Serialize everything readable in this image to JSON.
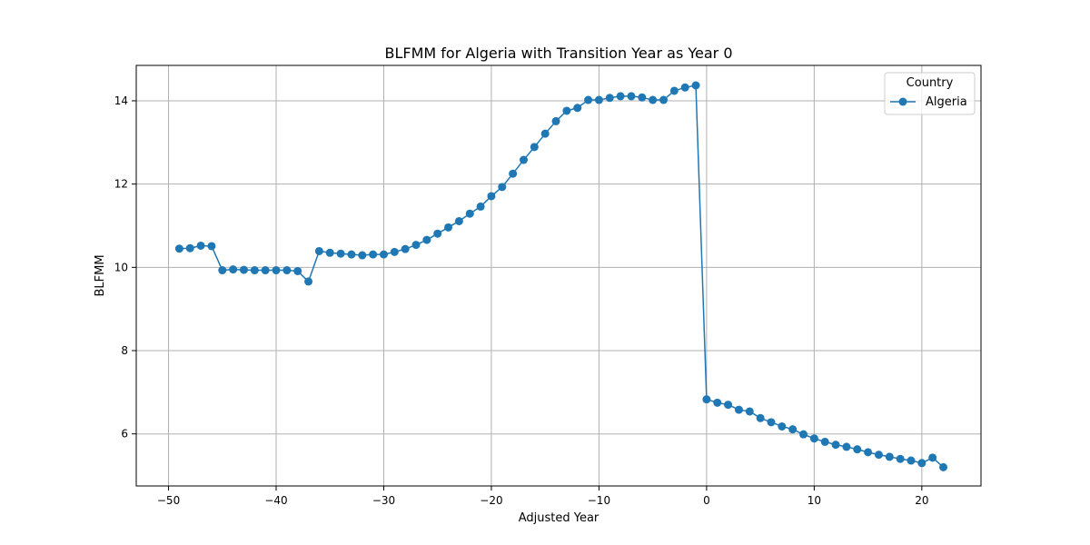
{
  "chart_data": {
    "type": "line",
    "title": "BLFMM for Algeria with Transition Year as Year 0",
    "xlabel": "Adjusted Year",
    "ylabel": "BLFMM",
    "xlim": [
      -53,
      25.5
    ],
    "ylim": [
      4.75,
      14.85
    ],
    "xticks": [
      -50,
      -40,
      -30,
      -20,
      -10,
      0,
      10,
      20
    ],
    "yticks": [
      6,
      8,
      10,
      12,
      14
    ],
    "grid": true,
    "legend": {
      "title": "Country",
      "placement": "top-right"
    },
    "series": [
      {
        "name": "Algeria",
        "color": "#1f77b4",
        "marker": "circle",
        "x": [
          -49,
          -48,
          -47,
          -46,
          -45,
          -44,
          -43,
          -42,
          -41,
          -40,
          -39,
          -38,
          -37,
          -36,
          -35,
          -34,
          -33,
          -32,
          -31,
          -30,
          -29,
          -28,
          -27,
          -26,
          -25,
          -24,
          -23,
          -22,
          -21,
          -20,
          -19,
          -18,
          -17,
          -16,
          -15,
          -14,
          -13,
          -12,
          -11,
          -10,
          -9,
          -8,
          -7,
          -6,
          -5,
          -4,
          -3,
          -2,
          -1,
          0,
          1,
          2,
          3,
          4,
          5,
          6,
          7,
          8,
          9,
          10,
          11,
          12,
          13,
          14,
          15,
          16,
          17,
          18,
          19,
          20,
          21,
          22
        ],
        "y": [
          10.45,
          10.46,
          10.52,
          10.51,
          9.93,
          9.95,
          9.94,
          9.93,
          9.93,
          9.93,
          9.93,
          9.91,
          9.66,
          10.39,
          10.35,
          10.33,
          10.31,
          10.29,
          10.31,
          10.31,
          10.37,
          10.44,
          10.54,
          10.66,
          10.81,
          10.96,
          11.11,
          11.29,
          11.46,
          11.71,
          11.93,
          12.25,
          12.58,
          12.89,
          13.21,
          13.51,
          13.76,
          13.83,
          14.02,
          14.02,
          14.07,
          14.11,
          14.11,
          14.08,
          14.02,
          14.02,
          14.24,
          14.32,
          14.37,
          6.83,
          6.75,
          6.7,
          6.58,
          6.54,
          6.38,
          6.28,
          6.18,
          6.11,
          5.99,
          5.89,
          5.81,
          5.74,
          5.69,
          5.63,
          5.56,
          5.5,
          5.45,
          5.4,
          5.36,
          5.3,
          5.43,
          5.2
        ]
      }
    ]
  }
}
